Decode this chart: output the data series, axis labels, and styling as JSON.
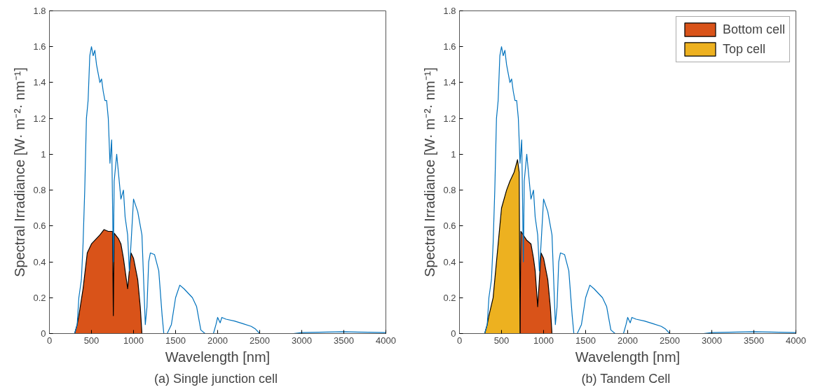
{
  "chart_data": [
    {
      "type": "line",
      "xlabel": "Wavelength [nm]",
      "ylabel": "Spectral Irradiance [W· m⁻²· nm⁻¹]",
      "annotations": [
        "(a)  Single junction cell"
      ],
      "xlim": [
        0,
        4000
      ],
      "ylim": [
        0,
        1.8
      ],
      "xticks": [
        0,
        500,
        1000,
        1500,
        2000,
        2500,
        3000,
        3500,
        4000
      ],
      "yticks": [
        0,
        0.2,
        0.4,
        0.6,
        0.8,
        1,
        1.2,
        1.4,
        1.6,
        1.8
      ],
      "grid": false,
      "legend": false,
      "series": [
        {
          "color": "#0072bd",
          "x": [
            280,
            300,
            330,
            350,
            380,
            400,
            420,
            440,
            460,
            480,
            500,
            520,
            540,
            560,
            580,
            600,
            620,
            640,
            660,
            680,
            700,
            720,
            740,
            760,
            770,
            800,
            820,
            850,
            880,
            900,
            930,
            950,
            970,
            1000,
            1050,
            1100,
            1120,
            1140,
            1160,
            1180,
            1200,
            1250,
            1300,
            1340,
            1360,
            1400,
            1450,
            1500,
            1550,
            1600,
            1700,
            1750,
            1800,
            1850,
            1950,
            1980,
            2000,
            2030,
            2050,
            2100,
            2200,
            2300,
            2400,
            2450,
            2500,
            2900,
            3000,
            3500,
            3800,
            4000
          ],
          "values": [
            0,
            0,
            0.05,
            0.2,
            0.3,
            0.5,
            0.8,
            1.2,
            1.3,
            1.55,
            1.6,
            1.55,
            1.58,
            1.5,
            1.45,
            1.4,
            1.42,
            1.35,
            1.3,
            1.3,
            1.2,
            0.95,
            1.08,
            0.4,
            0.85,
            1.0,
            0.9,
            0.75,
            0.8,
            0.65,
            0.55,
            0.35,
            0.5,
            0.75,
            0.68,
            0.55,
            0.3,
            0.05,
            0.15,
            0.4,
            0.45,
            0.44,
            0.35,
            0.1,
            0,
            0,
            0.05,
            0.2,
            0.27,
            0.25,
            0.2,
            0.15,
            0.02,
            0,
            0,
            0.05,
            0.09,
            0.06,
            0.09,
            0.08,
            0.07,
            0.055,
            0.04,
            0.025,
            0,
            0,
            0.005,
            0.01,
            0.007,
            0.005
          ]
        },
        {
          "type": "area",
          "color": "#d95319",
          "x": [
            300,
            330,
            350,
            400,
            450,
            500,
            600,
            650,
            700,
            750,
            760,
            770,
            820,
            850,
            880,
            930,
            970,
            1000,
            1050,
            1080,
            1100
          ],
          "values": [
            0,
            0.05,
            0.1,
            0.25,
            0.45,
            0.5,
            0.55,
            0.58,
            0.57,
            0.57,
            0.1,
            0.56,
            0.53,
            0.5,
            0.42,
            0.25,
            0.45,
            0.42,
            0.3,
            0.15,
            0
          ]
        }
      ]
    },
    {
      "type": "line",
      "xlabel": "Wavelength [nm]",
      "ylabel": "Spectral Irradiance [W· m⁻²· nm⁻¹]",
      "annotations": [
        "(b)  Tandem Cell"
      ],
      "xlim": [
        0,
        4000
      ],
      "ylim": [
        0,
        1.8
      ],
      "xticks": [
        0,
        500,
        1000,
        1500,
        2000,
        2500,
        3000,
        3500,
        4000
      ],
      "yticks": [
        0,
        0.2,
        0.4,
        0.6,
        0.8,
        1,
        1.2,
        1.4,
        1.6,
        1.8
      ],
      "grid": false,
      "legend": "top right",
      "series": [
        {
          "color": "#0072bd",
          "x": [
            280,
            300,
            330,
            350,
            380,
            400,
            420,
            440,
            460,
            480,
            500,
            520,
            540,
            560,
            580,
            600,
            620,
            640,
            660,
            680,
            700,
            720,
            740,
            760,
            770,
            800,
            820,
            850,
            880,
            900,
            930,
            950,
            970,
            1000,
            1050,
            1100,
            1120,
            1140,
            1160,
            1180,
            1200,
            1250,
            1300,
            1340,
            1360,
            1400,
            1450,
            1500,
            1550,
            1600,
            1700,
            1750,
            1800,
            1850,
            1950,
            1980,
            2000,
            2030,
            2050,
            2100,
            2200,
            2300,
            2400,
            2450,
            2500,
            2900,
            3000,
            3500,
            3800,
            4000
          ],
          "values": [
            0,
            0,
            0.05,
            0.2,
            0.3,
            0.5,
            0.8,
            1.2,
            1.3,
            1.55,
            1.6,
            1.55,
            1.58,
            1.5,
            1.45,
            1.4,
            1.42,
            1.35,
            1.3,
            1.3,
            1.2,
            0.95,
            1.08,
            0.4,
            0.85,
            1.0,
            0.9,
            0.75,
            0.8,
            0.65,
            0.55,
            0.35,
            0.5,
            0.75,
            0.68,
            0.55,
            0.3,
            0.05,
            0.15,
            0.4,
            0.45,
            0.44,
            0.35,
            0.1,
            0,
            0,
            0.05,
            0.2,
            0.27,
            0.25,
            0.2,
            0.15,
            0.02,
            0,
            0,
            0.05,
            0.09,
            0.06,
            0.09,
            0.08,
            0.07,
            0.055,
            0.04,
            0.025,
            0,
            0,
            0.005,
            0.01,
            0.007,
            0.005
          ]
        },
        {
          "type": "area",
          "name": "Bottom cell",
          "color": "#d95319",
          "x": [
            720,
            730,
            800,
            850,
            880,
            900,
            930,
            970,
            1000,
            1050,
            1080,
            1100
          ],
          "values": [
            0,
            0.57,
            0.52,
            0.5,
            0.42,
            0.35,
            0.15,
            0.45,
            0.42,
            0.3,
            0.15,
            0
          ]
        },
        {
          "type": "area",
          "name": "Top cell",
          "color": "#edb120",
          "x": [
            300,
            330,
            350,
            400,
            420,
            460,
            480,
            500,
            560,
            600,
            650,
            690,
            710,
            720
          ],
          "values": [
            0,
            0.05,
            0.1,
            0.2,
            0.3,
            0.5,
            0.6,
            0.7,
            0.8,
            0.85,
            0.9,
            0.97,
            0.9,
            0
          ]
        }
      ]
    }
  ]
}
